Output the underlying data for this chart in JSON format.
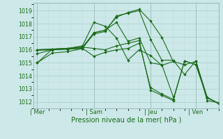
{
  "xlabel_bottom": "Pression niveau de la mer( hPa )",
  "bg_color": "#cce8e8",
  "grid_major_color": "#aacccc",
  "grid_minor_color": "#bcd8d8",
  "line_color": "#1a6b1a",
  "tick_color": "#1a6b1a",
  "spine_color": "#88aaaa",
  "ylim": [
    1011.5,
    1019.6
  ],
  "yticks": [
    1012,
    1013,
    1014,
    1015,
    1016,
    1017,
    1018,
    1019
  ],
  "xtick_labels": [
    "| Mer",
    "| Sam",
    "| Jeu",
    "| Ven"
  ],
  "xtick_positions": [
    0,
    30,
    60,
    84
  ],
  "xlim": [
    -2,
    96
  ],
  "lines": [
    {
      "x": [
        0,
        8,
        16,
        24,
        30,
        36,
        42,
        48,
        54,
        60,
        66,
        72,
        78,
        84,
        90,
        96
      ],
      "y": [
        1015.95,
        1016.0,
        1016.05,
        1016.1,
        1017.3,
        1017.5,
        1018.5,
        1018.85,
        1019.1,
        1018.2,
        1016.95,
        1015.1,
        1014.85,
        1015.1,
        1012.1,
        1011.95
      ]
    },
    {
      "x": [
        0,
        8,
        16,
        24,
        30,
        36,
        42,
        48,
        54,
        60,
        66,
        72,
        78,
        84,
        90,
        96
      ],
      "y": [
        1015.7,
        1016.0,
        1016.05,
        1016.15,
        1017.2,
        1017.4,
        1018.6,
        1018.8,
        1019.0,
        1016.8,
        1015.2,
        1015.2,
        1014.1,
        1015.15,
        1012.35,
        1011.85
      ]
    },
    {
      "x": [
        0,
        8,
        16,
        24,
        30,
        36,
        42,
        48,
        54,
        60,
        66,
        72
      ],
      "y": [
        1016.0,
        1016.05,
        1016.1,
        1016.2,
        1017.3,
        1017.5,
        1018.1,
        1016.65,
        1016.9,
        1015.0,
        1014.85,
        1012.4
      ]
    },
    {
      "x": [
        0,
        8,
        16,
        24,
        30,
        36,
        42,
        48,
        54,
        60,
        66,
        72
      ],
      "y": [
        1016.0,
        1016.05,
        1016.1,
        1016.3,
        1018.1,
        1017.8,
        1016.9,
        1015.2,
        1016.0,
        1015.55,
        1014.8,
        1015.1
      ]
    },
    {
      "x": [
        0,
        8,
        16,
        24,
        30,
        36,
        42,
        48,
        54,
        60,
        66,
        72,
        78,
        84,
        90,
        96
      ],
      "y": [
        1015.0,
        1015.75,
        1015.85,
        1016.1,
        1015.5,
        1015.8,
        1016.0,
        1016.1,
        1016.5,
        1013.1,
        1012.6,
        1012.2,
        1015.15,
        1014.85,
        1012.35,
        1011.9
      ]
    },
    {
      "x": [
        0,
        8,
        16,
        24,
        30,
        36,
        42,
        48,
        54,
        60,
        66,
        72,
        78,
        84,
        90,
        96
      ],
      "y": [
        1015.0,
        1016.05,
        1016.1,
        1016.2,
        1016.1,
        1016.0,
        1016.3,
        1016.5,
        1016.7,
        1012.9,
        1012.5,
        1012.1,
        1015.15,
        1014.85,
        1012.3,
        1011.9
      ]
    }
  ]
}
